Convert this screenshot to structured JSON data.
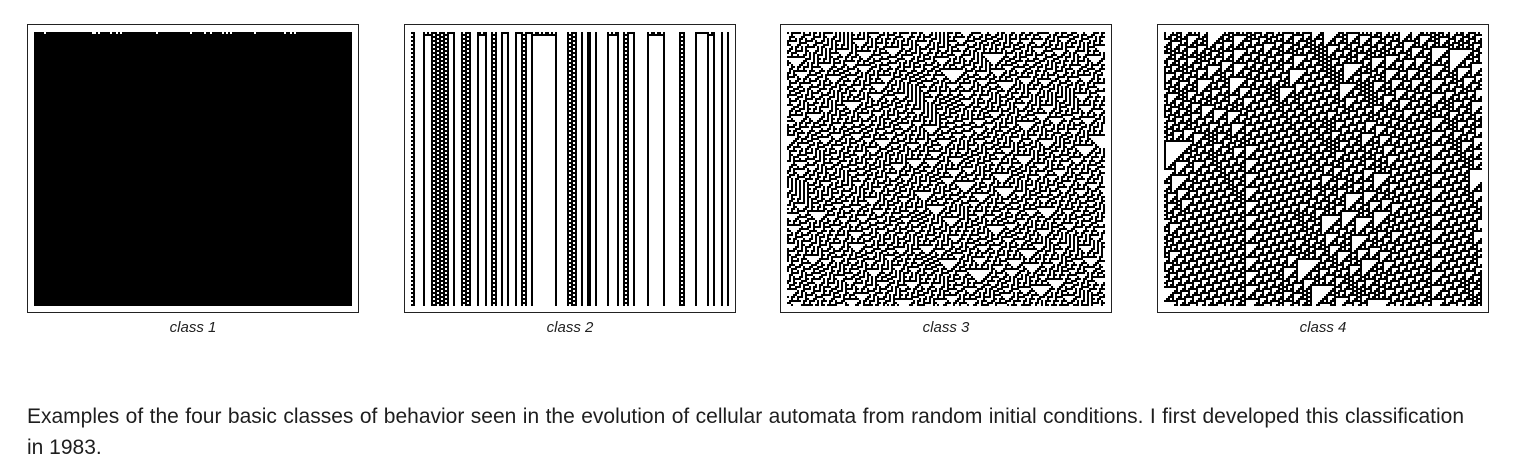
{
  "panels": [
    {
      "label": "class 1",
      "behavior": "uniform"
    },
    {
      "label": "class 2",
      "behavior": "periodic"
    },
    {
      "label": "class 3",
      "behavior": "chaotic"
    },
    {
      "label": "class 4",
      "behavior": "complex"
    }
  ],
  "caption": "Examples of the four basic classes of behavior seen in the evolution of cellular automata from random initial conditions. I first developed this classification in 1983.",
  "colors": {
    "cell_on": "#000000",
    "cell_off": "#ffffff",
    "frame": "#222222"
  }
}
